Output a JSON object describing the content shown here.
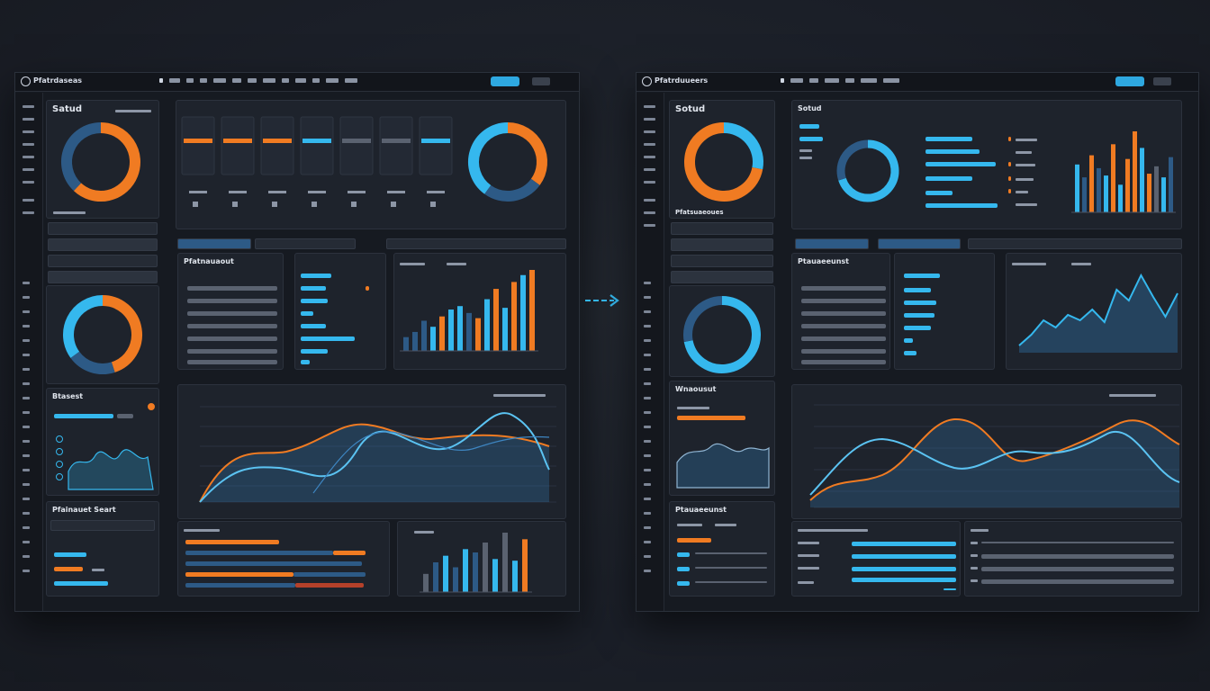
{
  "left_screen": {
    "brand": "Pfatrdaseas",
    "panel_title": "Satud",
    "section_1": "Pfatnauaout",
    "section_2": "Btasest",
    "section_3": "Pfainauet Seart",
    "donut_1_segments": [
      {
        "value": 62,
        "color": "#f07b22"
      },
      {
        "value": 38,
        "color": "#2d5a86"
      }
    ],
    "donut_2_segments": [
      {
        "value": 45,
        "color": "#f07b22"
      },
      {
        "value": 20,
        "color": "#2d5a86"
      },
      {
        "value": 35,
        "color": "#35b8ee"
      }
    ],
    "donut_3_segments": [
      {
        "value": 35,
        "color": "#f07b22"
      },
      {
        "value": 25,
        "color": "#2d5a86"
      },
      {
        "value": 40,
        "color": "#35b8ee"
      }
    ],
    "bar_chart_values": [
      16,
      22,
      35,
      28,
      40,
      48,
      52,
      44,
      38,
      60,
      72,
      50,
      80,
      88,
      94
    ],
    "bottom_bar_values": [
      22,
      36,
      44,
      30,
      52,
      48,
      60,
      40,
      72,
      38,
      64
    ]
  },
  "right_screen": {
    "brand": "Pfatrduueers",
    "panel_title": "Sotud",
    "section_1": "Pfatsuaeoues",
    "section_2": "Wnaousut",
    "section_3": "Ptauaeeunst",
    "donut_1_segments": [
      {
        "value": 28,
        "color": "#35b8ee"
      },
      {
        "value": 72,
        "color": "#f07b22"
      }
    ],
    "donut_2_segments": [
      {
        "value": 70,
        "color": "#35b8ee"
      },
      {
        "value": 30,
        "color": "#2d5a86"
      }
    ],
    "donut_3_segments": [
      {
        "value": 72,
        "color": "#35b8ee"
      },
      {
        "value": 28,
        "color": "#2d5a86"
      }
    ],
    "bar_chart_values": [
      52,
      38,
      62,
      48,
      40,
      74,
      30,
      58,
      88,
      70,
      42,
      50,
      38,
      60
    ],
    "area_values": [
      8,
      20,
      36,
      28,
      42,
      36,
      48,
      34,
      70,
      58,
      86,
      62,
      40,
      66
    ]
  },
  "colors": {
    "accent_orange": "#f07b22",
    "accent_blue": "#35b8ee",
    "dark_blue": "#2d5a86"
  }
}
